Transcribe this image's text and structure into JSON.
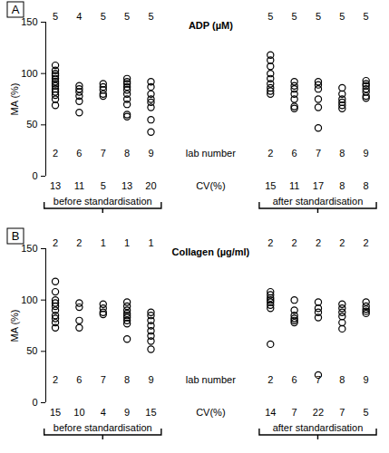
{
  "chart_data": [
    {
      "type": "scatter",
      "panel": "A",
      "title": "ADP (µM)",
      "y_label": "MA (%)",
      "ylim": [
        0,
        150
      ],
      "yticks": [
        0,
        50,
        100,
        150
      ],
      "lab_label": "lab number",
      "cv_label": "CV(%)",
      "color": "#000000",
      "marker": "open circle",
      "groups": [
        {
          "name": "before standardisation",
          "labs": [
            {
              "lab": 2,
              "concentration": 5,
              "cv": 13,
              "values": [
                108,
                103,
                100,
                98,
                95,
                92,
                90,
                88,
                85,
                82,
                79,
                75,
                69
              ]
            },
            {
              "lab": 6,
              "concentration": 4,
              "cv": 11,
              "values": [
                88,
                85,
                82,
                78,
                73,
                62
              ]
            },
            {
              "lab": 7,
              "concentration": 5,
              "cv": 5,
              "values": [
                90,
                87,
                84,
                80,
                78
              ]
            },
            {
              "lab": 8,
              "concentration": 5,
              "cv": 13,
              "values": [
                95,
                92,
                90,
                87,
                84,
                80,
                75,
                70,
                60,
                58
              ]
            },
            {
              "lab": 9,
              "concentration": 5,
              "cv": 20,
              "values": [
                92,
                87,
                80,
                75,
                72,
                67,
                55,
                43
              ]
            }
          ]
        },
        {
          "name": "after standardisation",
          "labs": [
            {
              "lab": 2,
              "concentration": 5,
              "cv": 15,
              "values": [
                118,
                113,
                107,
                100,
                95,
                90,
                86,
                83,
                80
              ]
            },
            {
              "lab": 6,
              "concentration": 5,
              "cv": 11,
              "values": [
                92,
                88,
                85,
                80,
                75,
                68,
                66
              ]
            },
            {
              "lab": 7,
              "concentration": 5,
              "cv": 17,
              "values": [
                92,
                89,
                85,
                75,
                67,
                47
              ]
            },
            {
              "lab": 8,
              "concentration": 5,
              "cv": 8,
              "values": [
                86,
                80,
                75,
                72,
                69,
                66
              ]
            },
            {
              "lab": 9,
              "concentration": 5,
              "cv": 8,
              "values": [
                93,
                90,
                88,
                85,
                82,
                78,
                76
              ]
            }
          ]
        }
      ]
    },
    {
      "type": "scatter",
      "panel": "B",
      "title": "Collagen (µg/ml)",
      "y_label": "MA (%)",
      "ylim": [
        0,
        150
      ],
      "yticks": [
        0,
        50,
        100,
        150
      ],
      "lab_label": "lab number",
      "cv_label": "CV(%)",
      "color": "#000000",
      "marker": "open circle",
      "groups": [
        {
          "name": "before standardisation",
          "labs": [
            {
              "lab": 2,
              "concentration": 2,
              "cv": 15,
              "values": [
                118,
                108,
                100,
                97,
                94,
                90,
                85,
                82,
                78,
                73
              ]
            },
            {
              "lab": 6,
              "concentration": 2,
              "cv": 10,
              "values": [
                97,
                93,
                80,
                73
              ]
            },
            {
              "lab": 7,
              "concentration": 1,
              "cv": 4,
              "values": [
                96,
                92,
                88,
                86
              ]
            },
            {
              "lab": 8,
              "concentration": 1,
              "cv": 9,
              "values": [
                98,
                94,
                90,
                87,
                85,
                83,
                80,
                77,
                62
              ]
            },
            {
              "lab": 9,
              "concentration": 1,
              "cv": 15,
              "values": [
                88,
                85,
                80,
                75,
                70,
                65,
                60,
                52
              ]
            }
          ]
        },
        {
          "name": "after standardisation",
          "labs": [
            {
              "lab": 2,
              "concentration": 2,
              "cv": 14,
              "values": [
                108,
                105,
                102,
                100,
                98,
                95,
                92,
                57
              ]
            },
            {
              "lab": 6,
              "concentration": 2,
              "cv": 7,
              "values": [
                100,
                90,
                85,
                82,
                80,
                78
              ]
            },
            {
              "lab": 7,
              "concentration": 2,
              "cv": 22,
              "values": [
                98,
                92,
                88,
                83,
                27
              ]
            },
            {
              "lab": 8,
              "concentration": 2,
              "cv": 7,
              "values": [
                96,
                92,
                88,
                84,
                78,
                72
              ]
            },
            {
              "lab": 9,
              "concentration": 2,
              "cv": 5,
              "values": [
                98,
                94,
                91,
                89,
                87
              ]
            }
          ]
        }
      ]
    }
  ]
}
